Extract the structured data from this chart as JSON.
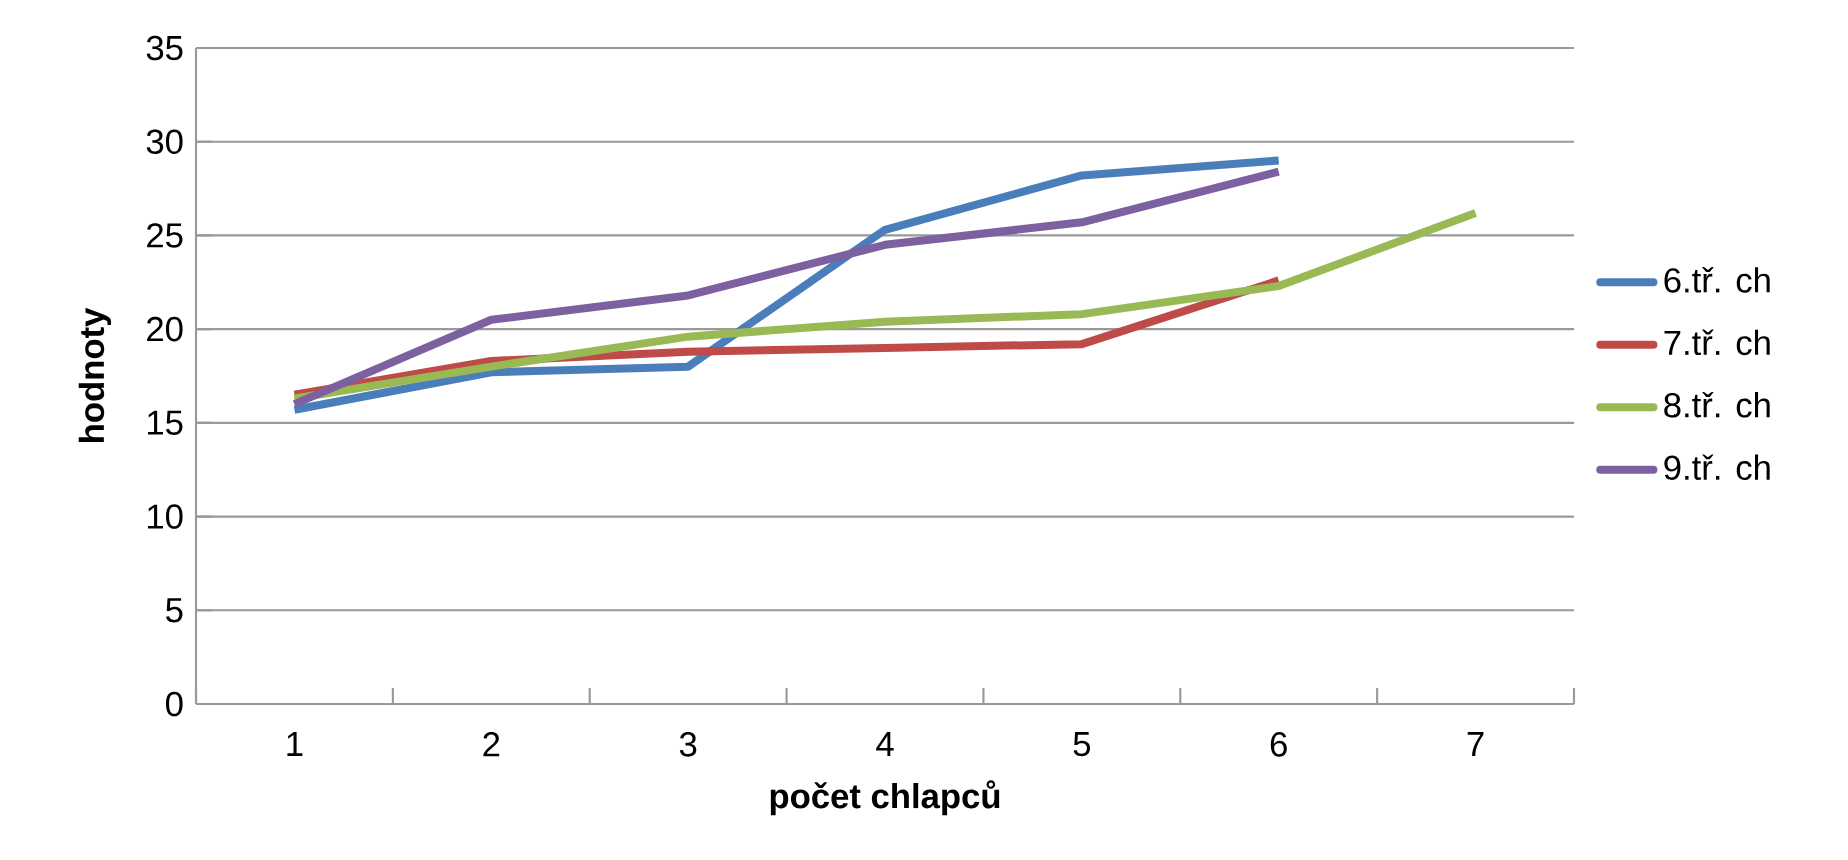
{
  "chart_data": {
    "type": "line",
    "xlabel": "počet chlapců",
    "ylabel": "hodnoty",
    "categories": [
      "1",
      "2",
      "3",
      "4",
      "5",
      "6",
      "7"
    ],
    "series": [
      {
        "name": "6.tř. ch",
        "color": "#4a7ebb",
        "values": [
          15.7,
          17.7,
          18.0,
          25.3,
          28.2,
          29.0,
          null
        ]
      },
      {
        "name": "7.tř. ch",
        "color": "#be4b48",
        "values": [
          16.5,
          18.3,
          18.8,
          19.0,
          19.2,
          22.6,
          null
        ]
      },
      {
        "name": "8.tř. ch",
        "color": "#98b954",
        "values": [
          16.3,
          18.0,
          19.6,
          20.4,
          20.8,
          22.3,
          26.2
        ]
      },
      {
        "name": "9.tř. ch",
        "color": "#7d60a0",
        "values": [
          16.0,
          20.5,
          21.8,
          24.5,
          25.7,
          28.4,
          null
        ]
      }
    ],
    "ylim": [
      0,
      35
    ],
    "yticks": [
      0,
      5,
      10,
      15,
      20,
      25,
      30,
      35
    ],
    "grid": "y",
    "legend": "right",
    "marker": "none",
    "line_style": "solid"
  }
}
